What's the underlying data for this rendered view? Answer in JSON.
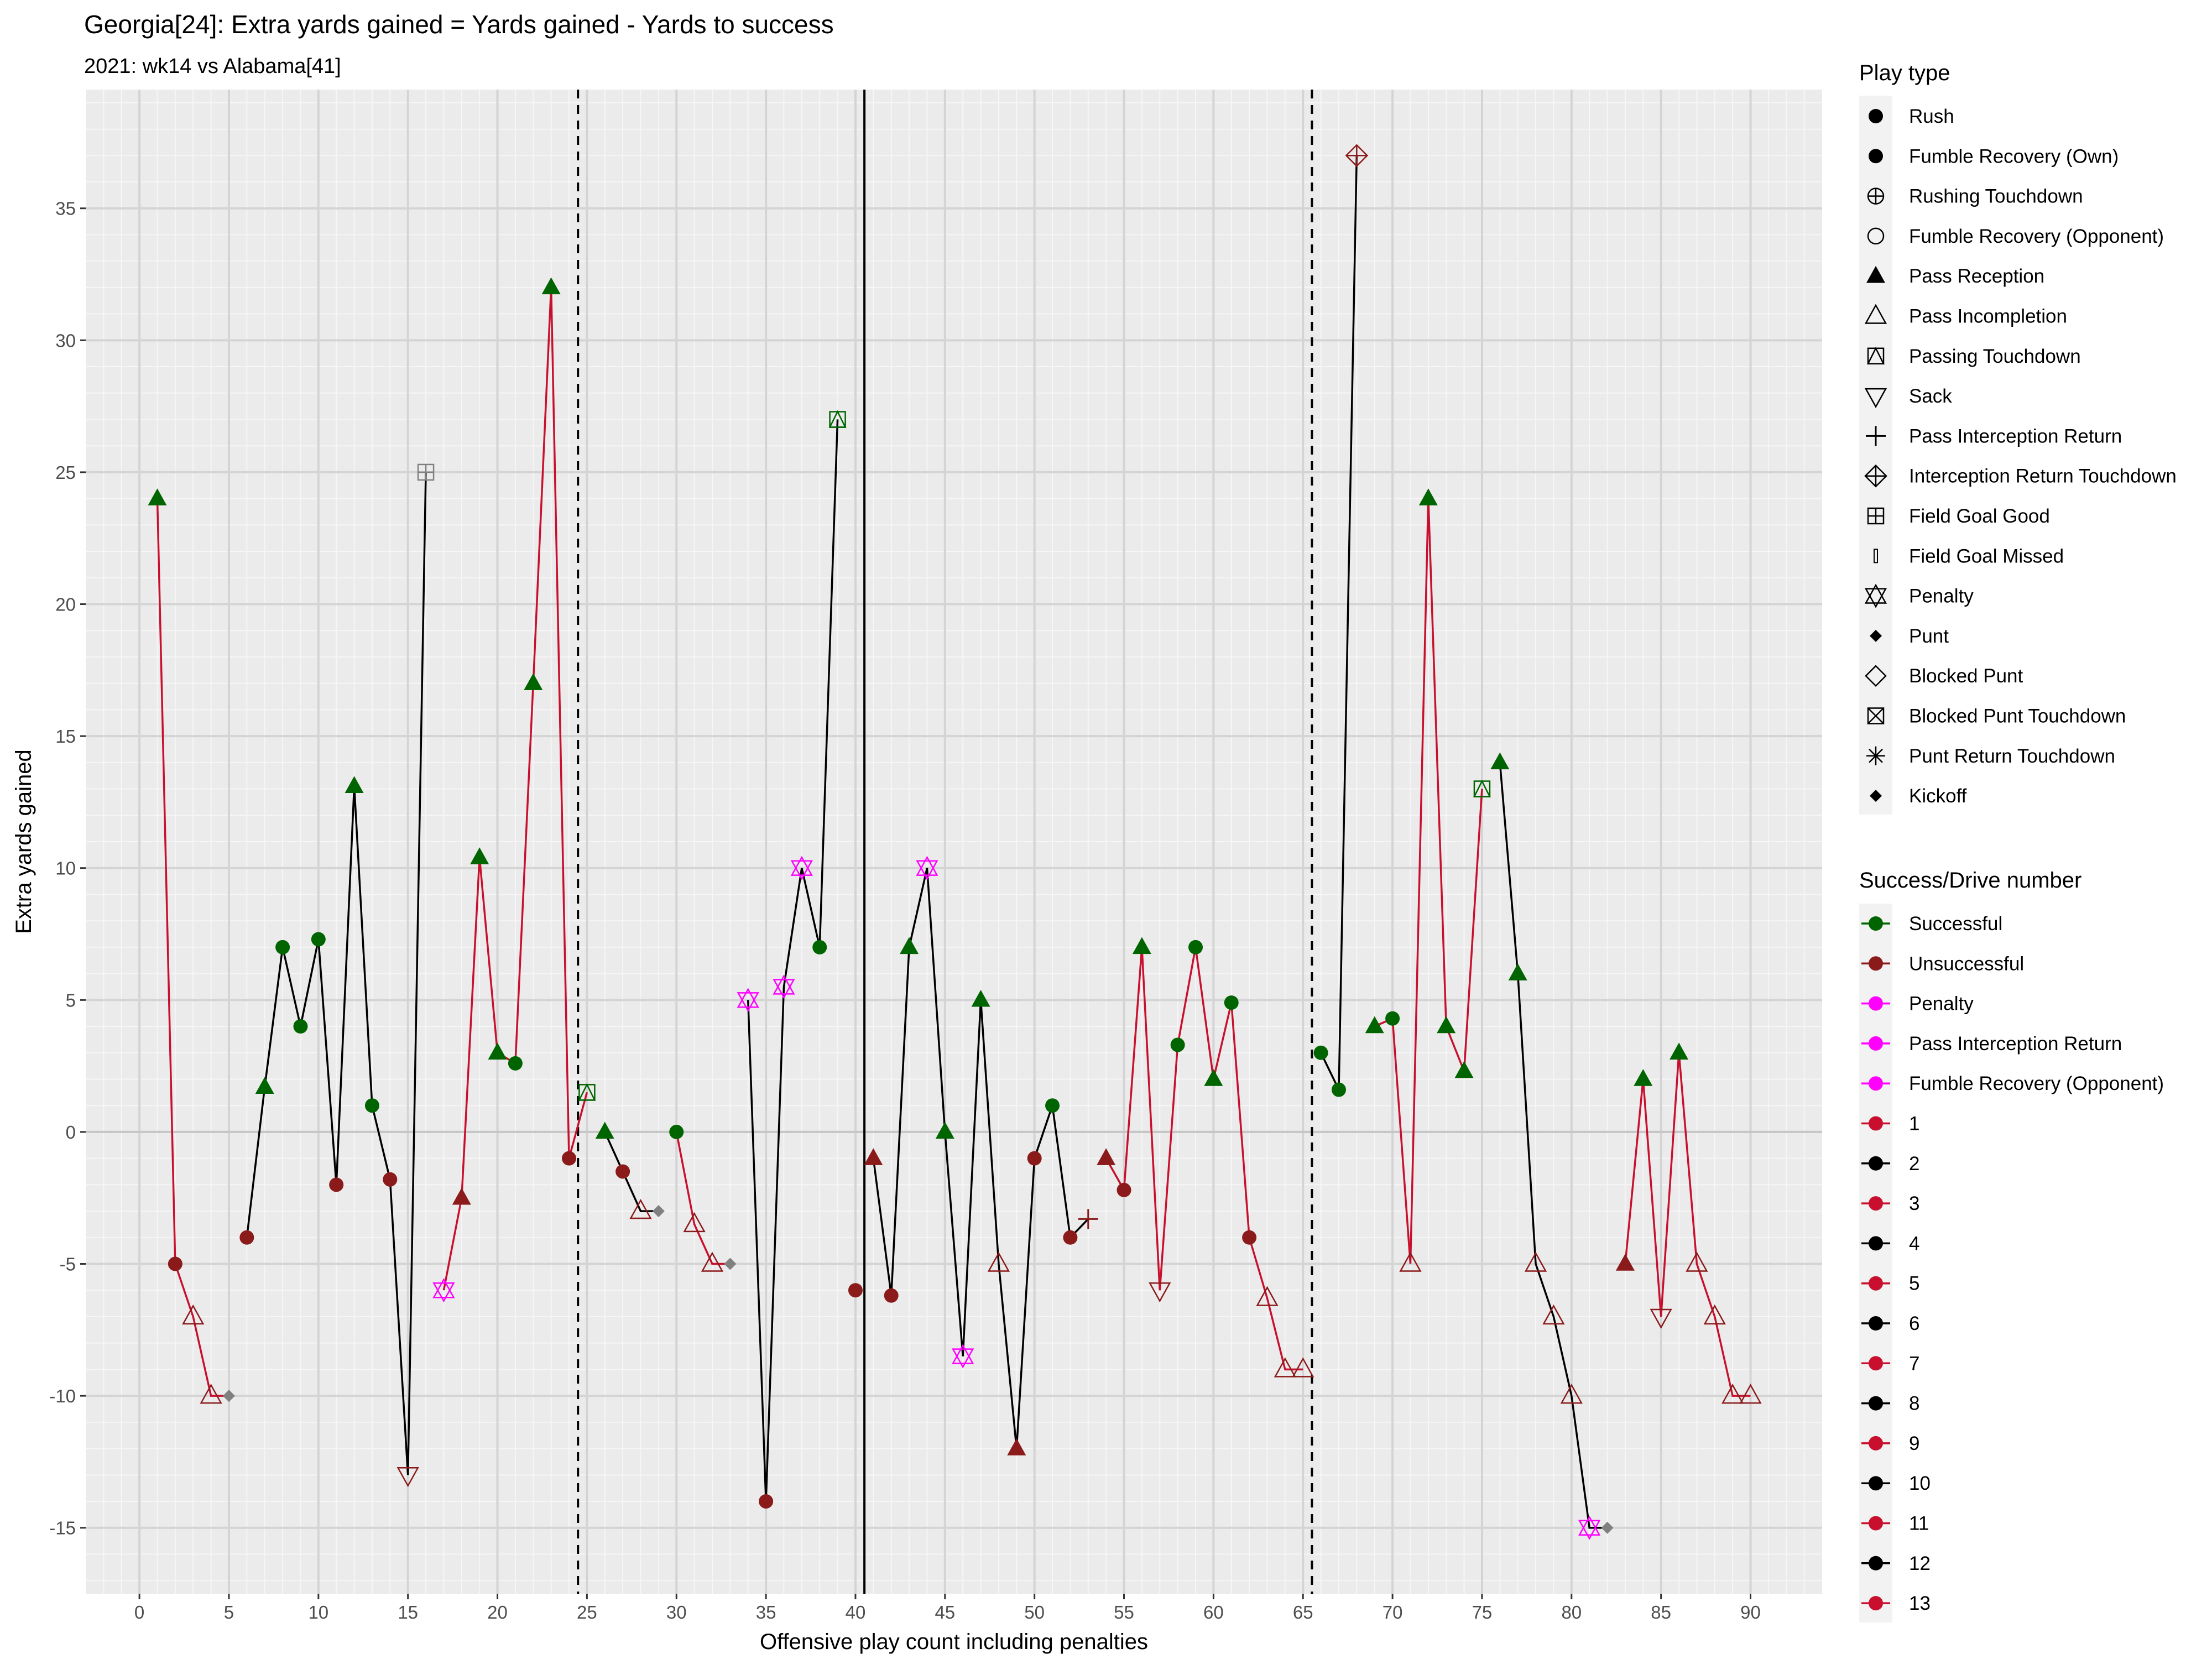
{
  "chart_data": {
    "type": "line",
    "title": "Georgia[24]: Extra yards gained = Yards gained - Yards to success",
    "subtitle": "2021: wk14 vs Alabama[41]",
    "xlabel": "Offensive play count including penalties",
    "ylabel": "Extra yards gained",
    "xlim": [
      -3,
      94
    ],
    "ylim": [
      -17.5,
      39.5
    ],
    "x_ticks": [
      0,
      5,
      10,
      15,
      20,
      25,
      30,
      35,
      40,
      45,
      50,
      55,
      60,
      65,
      70,
      75,
      80,
      85,
      90
    ],
    "y_ticks": [
      -15,
      -10,
      -5,
      0,
      5,
      10,
      15,
      20,
      25,
      30,
      35
    ],
    "grid": true,
    "legend_position": "right",
    "colors": {
      "successful": "#006400",
      "unsuccessful": "#8B1A1A",
      "penalty": "#FF00FF",
      "special": "#808080",
      "odd_drive": "#C8102E",
      "even_drive": "#000000",
      "panel_bg": "#EBEBEB"
    },
    "quarter_breaks": [
      {
        "x": 24.5,
        "style": "dashed"
      },
      {
        "x": 40.5,
        "style": "solid"
      },
      {
        "x": 65.5,
        "style": "dashed"
      }
    ],
    "legend_play_type": {
      "title": "Play type",
      "items": [
        {
          "label": "Rush",
          "shape": "circle"
        },
        {
          "label": "Fumble Recovery (Own)",
          "shape": "circle"
        },
        {
          "label": "Rushing Touchdown",
          "shape": "circle-plus"
        },
        {
          "label": "Fumble Recovery (Opponent)",
          "shape": "circle-open"
        },
        {
          "label": "Pass Reception",
          "shape": "triangle"
        },
        {
          "label": "Pass Incompletion",
          "shape": "triangle-open"
        },
        {
          "label": "Passing Touchdown",
          "shape": "square-triangle"
        },
        {
          "label": "Sack",
          "shape": "triangle-down-open"
        },
        {
          "label": "Pass Interception Return",
          "shape": "plus"
        },
        {
          "label": "Interception Return Touchdown",
          "shape": "diamond-plus"
        },
        {
          "label": "Field Goal Good",
          "shape": "square-plus"
        },
        {
          "label": "Field Goal Missed",
          "shape": "bar"
        },
        {
          "label": "Penalty",
          "shape": "star-triangles"
        },
        {
          "label": "Punt",
          "shape": "diamond-small"
        },
        {
          "label": "Blocked Punt",
          "shape": "diamond-open"
        },
        {
          "label": "Blocked Punt Touchdown",
          "shape": "square-x"
        },
        {
          "label": "Punt Return Touchdown",
          "shape": "asterisk"
        },
        {
          "label": "Kickoff",
          "shape": "diamond-small"
        }
      ]
    },
    "legend_success": {
      "title": "Success/Drive number",
      "items": [
        {
          "label": "Successful",
          "color": "#006400"
        },
        {
          "label": "Unsuccessful",
          "color": "#8B1A1A"
        },
        {
          "label": "Penalty",
          "color": "#FF00FF"
        },
        {
          "label": "Pass Interception Return",
          "color": "#FF00FF"
        },
        {
          "label": "Fumble Recovery (Opponent)",
          "color": "#FF00FF"
        },
        {
          "label": "1",
          "color": "#C8102E"
        },
        {
          "label": "2",
          "color": "#000000"
        },
        {
          "label": "3",
          "color": "#C8102E"
        },
        {
          "label": "4",
          "color": "#000000"
        },
        {
          "label": "5",
          "color": "#C8102E"
        },
        {
          "label": "6",
          "color": "#000000"
        },
        {
          "label": "7",
          "color": "#C8102E"
        },
        {
          "label": "8",
          "color": "#000000"
        },
        {
          "label": "9",
          "color": "#C8102E"
        },
        {
          "label": "10",
          "color": "#000000"
        },
        {
          "label": "11",
          "color": "#C8102E"
        },
        {
          "label": "12",
          "color": "#000000"
        },
        {
          "label": "13",
          "color": "#C8102E"
        }
      ]
    },
    "drives": [
      {
        "drive": 1,
        "points": [
          {
            "x": 1,
            "y": 24,
            "type": "reception",
            "status": "successful"
          },
          {
            "x": 2,
            "y": -5,
            "type": "rush",
            "status": "unsuccessful"
          },
          {
            "x": 3,
            "y": -7,
            "type": "incompletion",
            "status": "unsuccessful"
          },
          {
            "x": 4,
            "y": -10,
            "type": "incompletion",
            "status": "unsuccessful"
          },
          {
            "x": 5,
            "y": -10,
            "type": "punt",
            "status": "special"
          }
        ]
      },
      {
        "drive": 2,
        "points": [
          {
            "x": 6,
            "y": -4,
            "type": "rush",
            "status": "unsuccessful"
          },
          {
            "x": 7,
            "y": 1.7,
            "type": "reception",
            "status": "successful"
          },
          {
            "x": 8,
            "y": 7,
            "type": "rush",
            "status": "successful"
          },
          {
            "x": 9,
            "y": 4,
            "type": "rush",
            "status": "successful"
          },
          {
            "x": 10,
            "y": 7.3,
            "type": "rush",
            "status": "successful"
          },
          {
            "x": 11,
            "y": -2,
            "type": "rush",
            "status": "unsuccessful"
          },
          {
            "x": 12,
            "y": 13.1,
            "type": "reception",
            "status": "successful"
          },
          {
            "x": 13,
            "y": 1,
            "type": "rush",
            "status": "successful"
          },
          {
            "x": 14,
            "y": -1.8,
            "type": "rush",
            "status": "unsuccessful"
          },
          {
            "x": 15,
            "y": -13,
            "type": "sack",
            "status": "unsuccessful"
          },
          {
            "x": 16,
            "y": 25,
            "type": "fg_good",
            "status": "special"
          }
        ]
      },
      {
        "drive": 3,
        "points": [
          {
            "x": 17,
            "y": -6,
            "type": "penalty",
            "status": "penalty"
          },
          {
            "x": 18,
            "y": -2.5,
            "type": "reception",
            "status": "unsuccessful"
          },
          {
            "x": 19,
            "y": 10.4,
            "type": "reception",
            "status": "successful"
          },
          {
            "x": 20,
            "y": 3,
            "type": "reception",
            "status": "successful"
          },
          {
            "x": 21,
            "y": 2.6,
            "type": "rush",
            "status": "successful"
          },
          {
            "x": 22,
            "y": 17,
            "type": "reception",
            "status": "successful"
          },
          {
            "x": 23,
            "y": 32,
            "type": "reception",
            "status": "successful"
          },
          {
            "x": 24,
            "y": -1,
            "type": "rush",
            "status": "unsuccessful"
          },
          {
            "x": 25,
            "y": 1.5,
            "type": "pass_td",
            "status": "successful"
          }
        ]
      },
      {
        "drive": 4,
        "points": [
          {
            "x": 26,
            "y": 0,
            "type": "reception",
            "status": "successful"
          },
          {
            "x": 27,
            "y": -1.5,
            "type": "rush",
            "status": "unsuccessful"
          },
          {
            "x": 28,
            "y": -3,
            "type": "incompletion",
            "status": "unsuccessful"
          },
          {
            "x": 29,
            "y": -3,
            "type": "punt",
            "status": "special"
          }
        ]
      },
      {
        "drive": 5,
        "points": [
          {
            "x": 30,
            "y": 0,
            "type": "rush",
            "status": "successful"
          },
          {
            "x": 31,
            "y": -3.5,
            "type": "incompletion",
            "status": "unsuccessful"
          },
          {
            "x": 32,
            "y": -5,
            "type": "incompletion",
            "status": "unsuccessful"
          },
          {
            "x": 33,
            "y": -5,
            "type": "punt",
            "status": "special"
          }
        ]
      },
      {
        "drive": 6,
        "points": [
          {
            "x": 34,
            "y": 5,
            "type": "penalty",
            "status": "penalty"
          },
          {
            "x": 35,
            "y": -14,
            "type": "rush",
            "status": "unsuccessful"
          },
          {
            "x": 36,
            "y": 5.5,
            "type": "penalty",
            "status": "penalty"
          },
          {
            "x": 37,
            "y": 10,
            "type": "penalty",
            "status": "penalty"
          },
          {
            "x": 38,
            "y": 7,
            "type": "rush",
            "status": "successful"
          },
          {
            "x": 39,
            "y": 27,
            "type": "pass_td",
            "status": "successful"
          }
        ]
      },
      {
        "drive": 7,
        "points": [
          {
            "x": 40,
            "y": -6,
            "type": "rush",
            "status": "unsuccessful"
          }
        ]
      },
      {
        "drive": 8,
        "points": [
          {
            "x": 41,
            "y": -1,
            "type": "reception",
            "status": "unsuccessful"
          },
          {
            "x": 42,
            "y": -6.2,
            "type": "rush",
            "status": "unsuccessful"
          },
          {
            "x": 43,
            "y": 7,
            "type": "reception",
            "status": "successful"
          },
          {
            "x": 44,
            "y": 10,
            "type": "penalty",
            "status": "penalty"
          },
          {
            "x": 45,
            "y": 0,
            "type": "reception",
            "status": "successful"
          },
          {
            "x": 46,
            "y": -8.5,
            "type": "penalty",
            "status": "penalty"
          },
          {
            "x": 47,
            "y": 5,
            "type": "reception",
            "status": "successful"
          },
          {
            "x": 48,
            "y": -5,
            "type": "incompletion",
            "status": "unsuccessful"
          },
          {
            "x": 49,
            "y": -12,
            "type": "reception",
            "status": "unsuccessful"
          },
          {
            "x": 50,
            "y": -1,
            "type": "rush",
            "status": "unsuccessful"
          },
          {
            "x": 51,
            "y": 1,
            "type": "rush",
            "status": "successful"
          },
          {
            "x": 52,
            "y": -4,
            "type": "rush",
            "status": "unsuccessful"
          },
          {
            "x": 53,
            "y": -3.3,
            "type": "interception",
            "status": "unsuccessful"
          }
        ]
      },
      {
        "drive": 9,
        "points": [
          {
            "x": 54,
            "y": -1,
            "type": "reception",
            "status": "unsuccessful"
          },
          {
            "x": 55,
            "y": -2.2,
            "type": "rush",
            "status": "unsuccessful"
          },
          {
            "x": 56,
            "y": 7,
            "type": "reception",
            "status": "successful"
          },
          {
            "x": 57,
            "y": -6,
            "type": "sack",
            "status": "unsuccessful"
          },
          {
            "x": 58,
            "y": 3.3,
            "type": "rush",
            "status": "successful"
          },
          {
            "x": 59,
            "y": 7,
            "type": "rush",
            "status": "successful"
          },
          {
            "x": 60,
            "y": 2,
            "type": "reception",
            "status": "successful"
          },
          {
            "x": 61,
            "y": 4.9,
            "type": "rush",
            "status": "successful"
          },
          {
            "x": 62,
            "y": -4,
            "type": "rush",
            "status": "unsuccessful"
          },
          {
            "x": 63,
            "y": -6.3,
            "type": "incompletion",
            "status": "unsuccessful"
          },
          {
            "x": 64,
            "y": -9,
            "type": "incompletion",
            "status": "unsuccessful"
          },
          {
            "x": 65,
            "y": -9,
            "type": "incompletion",
            "status": "unsuccessful"
          }
        ]
      },
      {
        "drive": 10,
        "points": [
          {
            "x": 66,
            "y": 3,
            "type": "rush",
            "status": "successful"
          },
          {
            "x": 67,
            "y": 1.6,
            "type": "rush",
            "status": "successful"
          },
          {
            "x": 68,
            "y": 37,
            "type": "int_td",
            "status": "unsuccessful"
          }
        ]
      },
      {
        "drive": 11,
        "points": [
          {
            "x": 69,
            "y": 4,
            "type": "reception",
            "status": "successful"
          },
          {
            "x": 70,
            "y": 4.3,
            "type": "rush",
            "status": "successful"
          },
          {
            "x": 71,
            "y": -5,
            "type": "incompletion",
            "status": "unsuccessful"
          },
          {
            "x": 72,
            "y": 24,
            "type": "reception",
            "status": "successful"
          },
          {
            "x": 73,
            "y": 4,
            "type": "reception",
            "status": "successful"
          },
          {
            "x": 74,
            "y": 2.3,
            "type": "reception",
            "status": "successful"
          },
          {
            "x": 75,
            "y": 13,
            "type": "pass_td",
            "status": "successful"
          }
        ]
      },
      {
        "drive": 12,
        "points": [
          {
            "x": 76,
            "y": 14,
            "type": "reception",
            "status": "successful"
          },
          {
            "x": 77,
            "y": 6,
            "type": "reception",
            "status": "successful"
          },
          {
            "x": 78,
            "y": -5,
            "type": "incompletion",
            "status": "unsuccessful"
          },
          {
            "x": 79,
            "y": -7,
            "type": "incompletion",
            "status": "unsuccessful"
          },
          {
            "x": 80,
            "y": -10,
            "type": "incompletion",
            "status": "unsuccessful"
          },
          {
            "x": 81,
            "y": -15,
            "type": "penalty",
            "status": "penalty"
          },
          {
            "x": 82,
            "y": -15,
            "type": "punt",
            "status": "special"
          }
        ]
      },
      {
        "drive": 13,
        "points": [
          {
            "x": 83,
            "y": -5,
            "type": "reception",
            "status": "unsuccessful"
          },
          {
            "x": 84,
            "y": 2,
            "type": "reception",
            "status": "successful"
          },
          {
            "x": 85,
            "y": -7,
            "type": "sack",
            "status": "unsuccessful"
          },
          {
            "x": 86,
            "y": 3,
            "type": "reception",
            "status": "successful"
          },
          {
            "x": 87,
            "y": -5,
            "type": "incompletion",
            "status": "unsuccessful"
          },
          {
            "x": 88,
            "y": -7,
            "type": "incompletion",
            "status": "unsuccessful"
          },
          {
            "x": 89,
            "y": -10,
            "type": "incompletion",
            "status": "unsuccessful"
          },
          {
            "x": 90,
            "y": -10,
            "type": "incompletion",
            "status": "unsuccessful"
          }
        ]
      }
    ]
  }
}
